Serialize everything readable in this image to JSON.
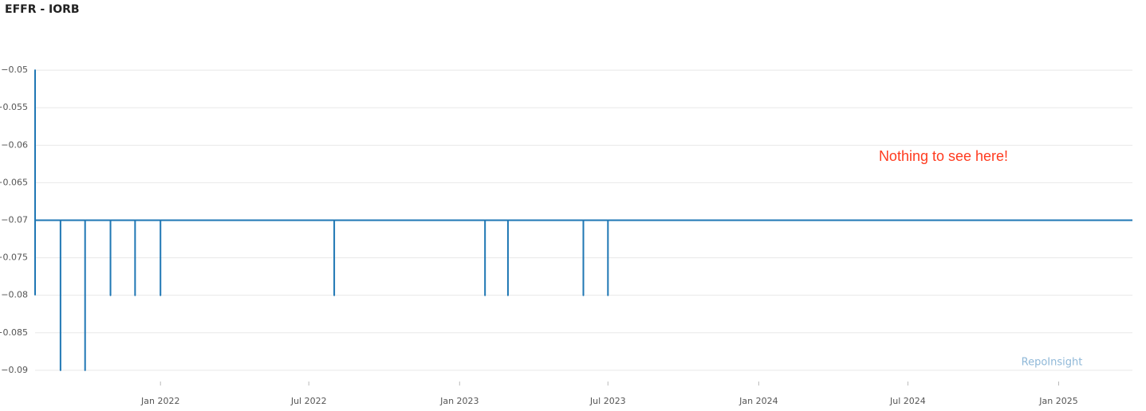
{
  "chart_data": {
    "type": "line",
    "title": "EFFR - IORB",
    "annotation": "Nothing to see here!",
    "watermark": "RepoInsight",
    "x": [
      "2021-08",
      "2021-08",
      "2021-08",
      "2021-08",
      "2021-09",
      "2021-09",
      "2021-09",
      "2021-10",
      "2021-10",
      "2021-10",
      "2021-11",
      "2021-11",
      "2021-11",
      "2021-12",
      "2021-12",
      "2021-12",
      "2022-01",
      "2022-01",
      "2022-01",
      "2022-08",
      "2022-08",
      "2022-08",
      "2023-02",
      "2023-02",
      "2023-02",
      "2023-03",
      "2023-03",
      "2023-03",
      "2023-06",
      "2023-06",
      "2023-06",
      "2023-07",
      "2023-07",
      "2023-07",
      "2025-04"
    ],
    "values": [
      -0.08,
      -0.05,
      -0.06,
      -0.07,
      -0.07,
      -0.09,
      -0.07,
      -0.07,
      -0.09,
      -0.07,
      -0.07,
      -0.08,
      -0.07,
      -0.07,
      -0.08,
      -0.07,
      -0.07,
      -0.08,
      -0.07,
      -0.07,
      -0.08,
      -0.07,
      -0.07,
      -0.08,
      -0.07,
      -0.07,
      -0.08,
      -0.07,
      -0.07,
      -0.08,
      -0.07,
      -0.07,
      -0.08,
      -0.07,
      -0.07
    ],
    "color": "#1f77b4",
    "xlim": [
      "2021-08",
      "2025-04"
    ],
    "xticks": [
      {
        "value": "2022-01",
        "label": "Jan 2022"
      },
      {
        "value": "2022-07",
        "label": "Jul 2022"
      },
      {
        "value": "2023-01",
        "label": "Jan 2023"
      },
      {
        "value": "2023-07",
        "label": "Jul 2023"
      },
      {
        "value": "2024-01",
        "label": "Jan 2024"
      },
      {
        "value": "2024-07",
        "label": "Jul 2024"
      },
      {
        "value": "2025-01",
        "label": "Jan 2025"
      }
    ],
    "ylim": [
      -0.0915,
      -0.0485
    ],
    "yticks": [
      {
        "value": -0.05,
        "label": "−0.05"
      },
      {
        "value": -0.055,
        "label": "−0.055"
      },
      {
        "value": -0.06,
        "label": "−0.06"
      },
      {
        "value": -0.065,
        "label": "−0.065"
      },
      {
        "value": -0.07,
        "label": "−0.07"
      },
      {
        "value": -0.075,
        "label": "−0.075"
      },
      {
        "value": -0.08,
        "label": "−0.08"
      },
      {
        "value": -0.085,
        "label": "−0.085"
      },
      {
        "value": -0.09,
        "label": "−0.09"
      }
    ],
    "grid": true
  }
}
